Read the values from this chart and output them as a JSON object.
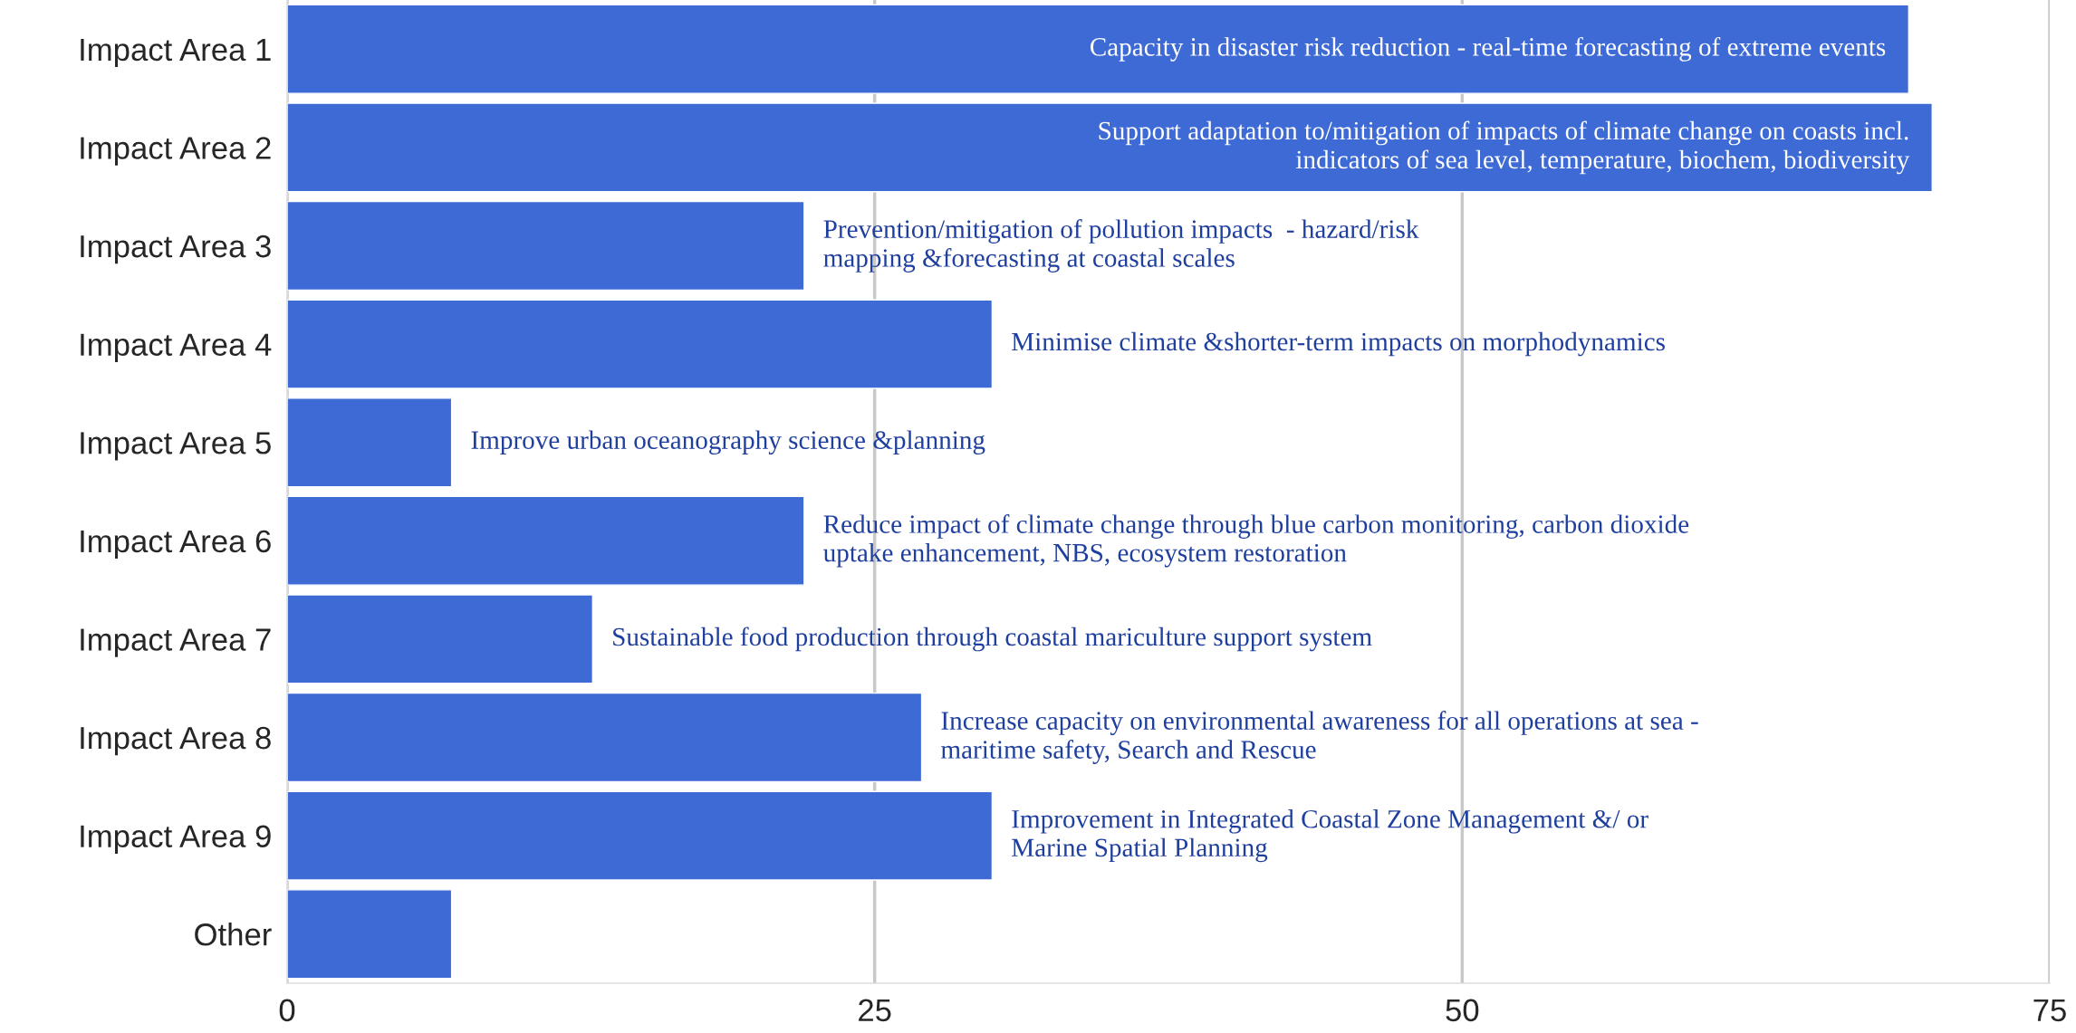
{
  "chart_data": {
    "type": "bar",
    "orientation": "horizontal",
    "categories": [
      "Impact Area 1",
      "Impact Area 2",
      "Impact Area 3",
      "Impact Area 4",
      "Impact Area 5",
      "Impact Area 6",
      "Impact Area 7",
      "Impact Area 8",
      "Impact Area 9",
      "Other"
    ],
    "values": [
      69,
      70,
      22,
      30,
      7,
      22,
      13,
      27,
      30,
      7
    ],
    "color": "#3e6ad6",
    "xlim": [
      0,
      75
    ],
    "xticks": [
      0,
      25,
      50,
      75
    ],
    "grid": "x",
    "legend": false,
    "annotations": [
      {
        "text": "Capacity in disaster risk reduction - real-time forecasting of extreme events",
        "x": 69,
        "y": "Impact Area 1"
      },
      {
        "text": "Support adaptation to/mitigation of impacts of climate change on coasts incl.\nindicators of sea level, temperature, biochem, biodiversity",
        "x": 70,
        "y": "Impact Area 2"
      },
      {
        "text": "Prevention/mitigation of pollution impacts  - hazard/risk\nmapping &forecasting at coastal scales",
        "x": 22,
        "y": "Impact Area 3"
      },
      {
        "text": "Minimise climate &shorter-term impacts on morphodynamics",
        "x": 30,
        "y": "Impact Area 4"
      },
      {
        "text": "Improve urban oceanography science &planning",
        "x": 7,
        "y": "Impact Area 5"
      },
      {
        "text": "Reduce impact of climate change through blue carbon monitoring, carbon dioxide\nuptake enhancement, NBS, ecosystem restoration",
        "x": 22,
        "y": "Impact Area 6"
      },
      {
        "text": "Sustainable food production through coastal mariculture support system",
        "x": 13,
        "y": "Impact Area 7"
      },
      {
        "text": "Increase capacity on environmental awareness for all operations at sea -\nmaritime safety, Search and Rescue",
        "x": 27,
        "y": "Impact Area 8"
      },
      {
        "text": "Improvement in Integrated Coastal Zone Management &/ or\nMarine Spatial Planning",
        "x": 30,
        "y": "Impact Area 9"
      }
    ]
  }
}
